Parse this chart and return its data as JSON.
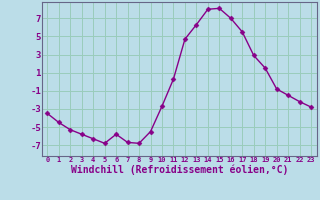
{
  "x": [
    0,
    1,
    2,
    3,
    4,
    5,
    6,
    7,
    8,
    9,
    10,
    11,
    12,
    13,
    14,
    15,
    16,
    17,
    18,
    19,
    20,
    21,
    22,
    23
  ],
  "y": [
    -3.5,
    -4.5,
    -5.3,
    -5.8,
    -6.3,
    -6.8,
    -5.8,
    -6.7,
    -6.8,
    -5.5,
    -2.7,
    0.3,
    4.7,
    6.3,
    8.0,
    8.1,
    7.0,
    5.5,
    2.9,
    1.5,
    -0.8,
    -1.5,
    -2.2,
    -2.8
  ],
  "line_color": "#880088",
  "marker": "D",
  "marker_size": 2.5,
  "bg_color": "#bbdde8",
  "grid_color": "#99ccbb",
  "xlabel": "Windchill (Refroidissement éolien,°C)",
  "xlabel_fontsize": 7,
  "ytick_labels": [
    "7",
    "5",
    "3",
    "1",
    "-1",
    "-3",
    "-5",
    "-7"
  ],
  "ytick_values": [
    7,
    5,
    3,
    1,
    -1,
    -3,
    -5,
    -7
  ],
  "ylim": [
    -8.2,
    8.8
  ],
  "xlim": [
    -0.5,
    23.5
  ],
  "tick_color": "#880088",
  "axis_color": "#666688"
}
